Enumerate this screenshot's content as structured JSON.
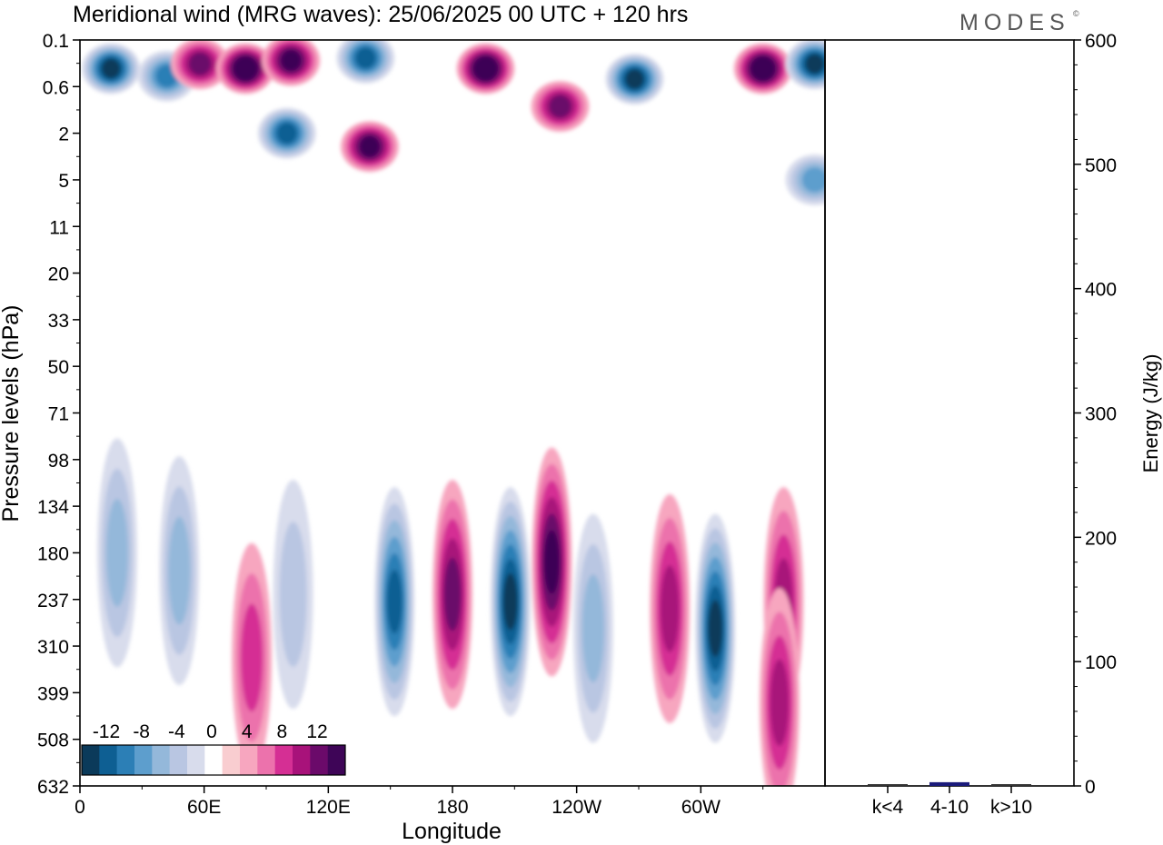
{
  "title": "Meridional wind (MRG waves):  25/06/2025  00 UTC  + 120 hrs",
  "brand": "MODES",
  "brand_mark": "©",
  "chart_data": [
    {
      "type": "heatmap",
      "xlabel": "Longitude",
      "ylabel": "Pressure levels (hPa)",
      "x_ticks": [
        "0",
        "60E",
        "120E",
        "180",
        "120W",
        "60W"
      ],
      "y_ticks": [
        "0.1",
        "0.6",
        "2",
        "5",
        "11",
        "20",
        "33",
        "50",
        "71",
        "98",
        "134",
        "180",
        "237",
        "310",
        "399",
        "508",
        "632"
      ],
      "colorbar": {
        "labels": [
          "-12",
          "-8",
          "-4",
          "0",
          "4",
          "8",
          "12"
        ],
        "levels": [
          -14,
          -12,
          -10,
          -8,
          -6,
          -4,
          -2,
          2,
          4,
          6,
          8,
          10,
          12,
          14
        ],
        "colors": [
          "#0b3a5a",
          "#0e5f93",
          "#2c7fb6",
          "#5d9ecd",
          "#94b8da",
          "#b9c6e2",
          "#d8dcec",
          "#ffffff",
          "#f9cdd0",
          "#f7a6bf",
          "#ec72ac",
          "#d52f94",
          "#a8127a",
          "#6b0a6a",
          "#3e0557"
        ]
      },
      "features": [
        {
          "lon": 15,
          "p": 0.3,
          "v": -14
        },
        {
          "lon": 42,
          "p": 0.4,
          "v": -10
        },
        {
          "lon": 58,
          "p": 0.25,
          "v": 10
        },
        {
          "lon": 80,
          "p": 0.3,
          "v": 14
        },
        {
          "lon": 102,
          "p": 0.22,
          "v": 12
        },
        {
          "lon": 138,
          "p": 0.2,
          "v": -12
        },
        {
          "lon": 196,
          "p": 0.3,
          "v": 14
        },
        {
          "lon": 232,
          "p": 1.0,
          "v": 10
        },
        {
          "lon": 268,
          "p": 0.45,
          "v": -14
        },
        {
          "lon": 330,
          "p": 0.3,
          "v": 14
        },
        {
          "lon": 355,
          "p": 0.25,
          "v": -14
        },
        {
          "lon": 100,
          "p": 2.0,
          "v": -12
        },
        {
          "lon": 140,
          "p": 2.6,
          "v": 12
        },
        {
          "lon": 18,
          "p": 180,
          "v": -6
        },
        {
          "lon": 48,
          "p": 200,
          "v": -6
        },
        {
          "lon": 83,
          "p": 330,
          "v": 6
        },
        {
          "lon": 103,
          "p": 230,
          "v": -4
        },
        {
          "lon": 152,
          "p": 240,
          "v": -12
        },
        {
          "lon": 180,
          "p": 230,
          "v": 10
        },
        {
          "lon": 208,
          "p": 240,
          "v": -14
        },
        {
          "lon": 228,
          "p": 190,
          "v": 12
        },
        {
          "lon": 248,
          "p": 280,
          "v": -6
        },
        {
          "lon": 285,
          "p": 250,
          "v": 8
        },
        {
          "lon": 307,
          "p": 280,
          "v": -14
        },
        {
          "lon": 340,
          "p": 240,
          "v": 8
        },
        {
          "lon": 338,
          "p": 420,
          "v": 8
        },
        {
          "lon": 355,
          "p": 5,
          "v": -8
        }
      ]
    },
    {
      "type": "bar",
      "categories": [
        "k<4",
        "4-10",
        "k>10"
      ],
      "values": [
        0.5,
        3,
        0.5
      ],
      "ylabel": "Energy (J/kg)",
      "ylim": [
        0,
        600
      ],
      "y_ticks": [
        "0",
        "100",
        "200",
        "300",
        "400",
        "500",
        "600"
      ],
      "color": "#1a1a7a"
    }
  ]
}
